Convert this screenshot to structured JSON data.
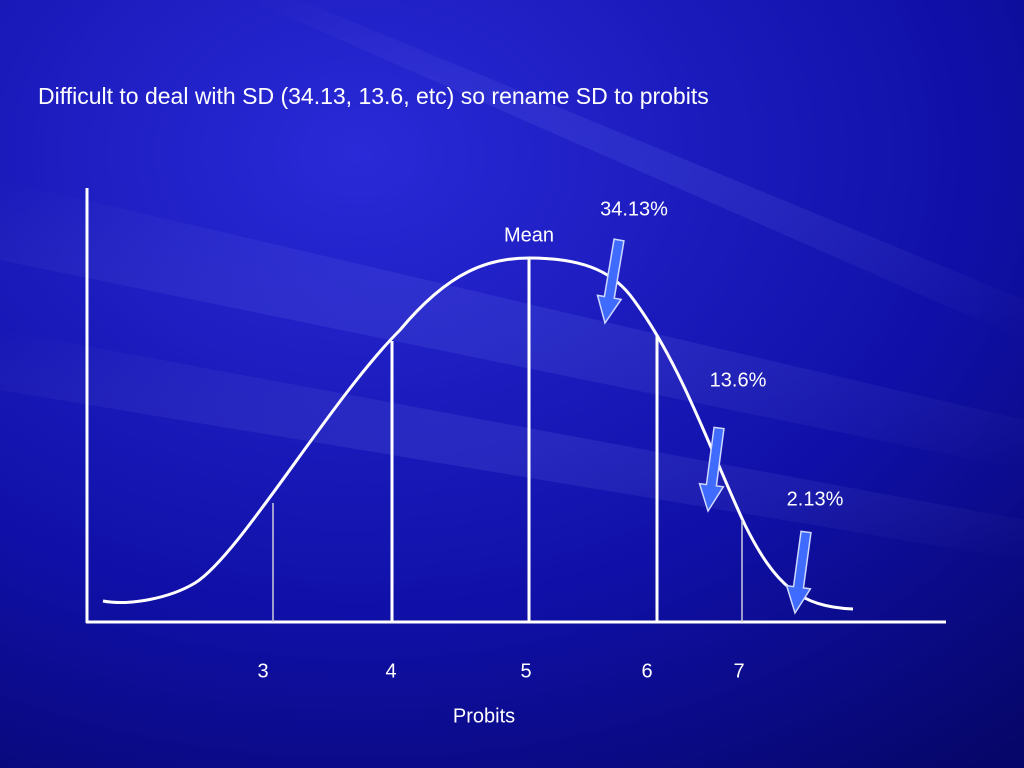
{
  "title": "Difficult to deal with SD (34.13, 13.6, etc) so rename SD to probits",
  "diagram": {
    "peak_label": "Mean",
    "annotations": [
      "34.13%",
      "13.6%",
      "2.13%"
    ],
    "x_labels": [
      "3",
      "4",
      "5",
      "6",
      "7"
    ],
    "x_axis_label": "Probits"
  }
}
